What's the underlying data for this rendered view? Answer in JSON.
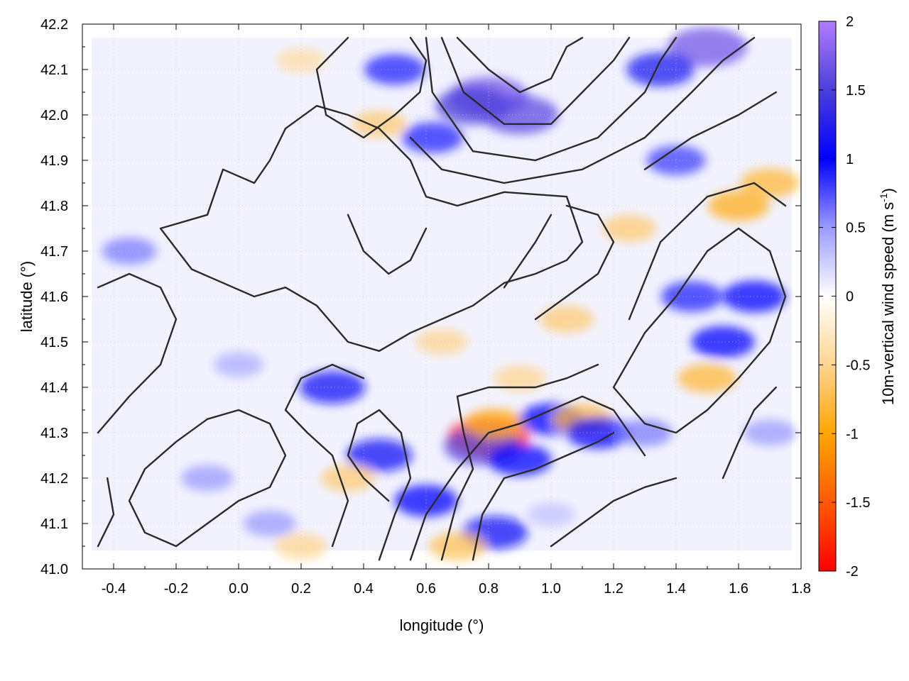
{
  "chart_data": {
    "type": "heatmap",
    "title": "",
    "xlabel": "longitude (°)",
    "ylabel": "latitude (°)",
    "xlim": [
      -0.5,
      1.8
    ],
    "ylim": [
      41.0,
      42.2
    ],
    "x_ticks": [
      "-0.4",
      "-0.2",
      "0.0",
      "0.2",
      "0.4",
      "0.6",
      "0.8",
      "1.0",
      "1.2",
      "1.4",
      "1.6",
      "1.8"
    ],
    "x_tick_values": [
      -0.4,
      -0.2,
      0.0,
      0.2,
      0.4,
      0.6,
      0.8,
      1.0,
      1.2,
      1.4,
      1.6,
      1.8
    ],
    "y_ticks": [
      "41.0",
      "41.1",
      "41.2",
      "41.3",
      "41.4",
      "41.5",
      "41.6",
      "41.7",
      "41.8",
      "41.9",
      "42.0",
      "42.1",
      "42.2"
    ],
    "y_tick_values": [
      41.0,
      41.1,
      41.2,
      41.3,
      41.4,
      41.5,
      41.6,
      41.7,
      41.8,
      41.9,
      42.0,
      42.1,
      42.2
    ],
    "grid": true,
    "colorbar": {
      "label": "10m-vertical wind speed (m s",
      "label_sup": "-1",
      "label_close": ")",
      "range": [
        -2,
        2
      ],
      "ticks": [
        "2",
        "1.5",
        "1",
        "0.5",
        "0",
        "-0.5",
        "-1",
        "-1.5",
        "-2"
      ],
      "tick_values": [
        2,
        1.5,
        1,
        0.5,
        0,
        -0.5,
        -1,
        -1.5,
        -2
      ],
      "colors": [
        {
          "v": -2.0,
          "c": "#ff0000"
        },
        {
          "v": -1.5,
          "c": "#ff5a00"
        },
        {
          "v": -1.0,
          "c": "#ffa500"
        },
        {
          "v": -0.5,
          "c": "#ffd590"
        },
        {
          "v": 0.0,
          "c": "#ffffff"
        },
        {
          "v": 0.5,
          "c": "#9a9aff"
        },
        {
          "v": 1.0,
          "c": "#0000ff"
        },
        {
          "v": 1.5,
          "c": "#4a3fd9"
        },
        {
          "v": 2.0,
          "c": "#b07cff"
        }
      ]
    },
    "data_extent": {
      "lon": [
        -0.47,
        1.77
      ],
      "lat": [
        41.04,
        42.17
      ]
    },
    "features": [
      {
        "lon": 0.8,
        "lat": 42.04,
        "value": 1.7
      },
      {
        "lon": 0.75,
        "lat": 42.02,
        "value": 1.5
      },
      {
        "lon": 0.9,
        "lat": 42.0,
        "value": 1.6
      },
      {
        "lon": 1.5,
        "lat": 42.15,
        "value": 1.7
      },
      {
        "lon": 1.35,
        "lat": 42.1,
        "value": 1.2
      },
      {
        "lon": 0.8,
        "lat": 41.29,
        "value": -1.8
      },
      {
        "lon": 0.78,
        "lat": 41.27,
        "value": 1.6
      },
      {
        "lon": 0.82,
        "lat": 41.32,
        "value": -0.9
      },
      {
        "lon": 0.9,
        "lat": 41.24,
        "value": 1.0
      },
      {
        "lon": 1.0,
        "lat": 41.33,
        "value": 1.0
      },
      {
        "lon": 1.1,
        "lat": 41.33,
        "value": -0.8
      },
      {
        "lon": 1.15,
        "lat": 41.3,
        "value": 1.0
      },
      {
        "lon": 0.45,
        "lat": 41.25,
        "value": 1.1
      },
      {
        "lon": 0.35,
        "lat": 41.2,
        "value": -0.6
      },
      {
        "lon": 0.3,
        "lat": 41.4,
        "value": 1.1
      },
      {
        "lon": 0.6,
        "lat": 41.15,
        "value": 1.0
      },
      {
        "lon": 0.82,
        "lat": 41.08,
        "value": 1.1
      },
      {
        "lon": 0.7,
        "lat": 41.05,
        "value": -0.7
      },
      {
        "lon": 1.55,
        "lat": 41.5,
        "value": 1.0
      },
      {
        "lon": 1.5,
        "lat": 41.42,
        "value": -0.8
      },
      {
        "lon": 1.45,
        "lat": 41.6,
        "value": 0.9
      },
      {
        "lon": 1.6,
        "lat": 41.8,
        "value": -0.9
      },
      {
        "lon": 1.7,
        "lat": 41.85,
        "value": -0.8
      },
      {
        "lon": 1.4,
        "lat": 41.9,
        "value": 0.8
      },
      {
        "lon": 1.65,
        "lat": 41.6,
        "value": 1.0
      },
      {
        "lon": 1.25,
        "lat": 41.75,
        "value": -0.6
      },
      {
        "lon": 1.05,
        "lat": 41.55,
        "value": -0.6
      },
      {
        "lon": 0.2,
        "lat": 42.12,
        "value": -0.4
      },
      {
        "lon": 0.45,
        "lat": 41.98,
        "value": -0.6
      },
      {
        "lon": 0.5,
        "lat": 42.1,
        "value": 0.9
      },
      {
        "lon": 0.62,
        "lat": 41.95,
        "value": 0.9
      },
      {
        "lon": -0.35,
        "lat": 41.7,
        "value": 0.6
      },
      {
        "lon": 0.0,
        "lat": 41.45,
        "value": 0.4
      },
      {
        "lon": -0.1,
        "lat": 41.2,
        "value": 0.5
      },
      {
        "lon": 0.1,
        "lat": 41.1,
        "value": 0.5
      },
      {
        "lon": 0.2,
        "lat": 41.05,
        "value": -0.5
      },
      {
        "lon": 0.65,
        "lat": 41.5,
        "value": -0.5
      },
      {
        "lon": 0.9,
        "lat": 41.42,
        "value": -0.5
      },
      {
        "lon": 1.3,
        "lat": 41.3,
        "value": 0.6
      },
      {
        "lon": 1.7,
        "lat": 41.3,
        "value": 0.5
      },
      {
        "lon": 1.0,
        "lat": 41.12,
        "value": 0.3
      }
    ],
    "contours": [
      [
        [
          -0.25,
          41.75
        ],
        [
          -0.1,
          41.78
        ],
        [
          -0.05,
          41.88
        ],
        [
          0.05,
          41.85
        ],
        [
          0.1,
          41.9
        ],
        [
          0.15,
          41.97
        ],
        [
          0.25,
          42.02
        ],
        [
          0.35,
          42.0
        ],
        [
          0.45,
          41.97
        ],
        [
          0.55,
          41.9
        ],
        [
          0.6,
          41.82
        ],
        [
          0.7,
          41.8
        ],
        [
          0.85,
          41.83
        ],
        [
          1.05,
          41.82
        ],
        [
          1.1,
          41.72
        ],
        [
          1.05,
          41.68
        ],
        [
          0.95,
          41.65
        ],
        [
          0.85,
          41.63
        ],
        [
          0.75,
          41.58
        ],
        [
          0.65,
          41.55
        ],
        [
          0.55,
          41.52
        ],
        [
          0.45,
          41.48
        ],
        [
          0.35,
          41.5
        ],
        [
          0.25,
          41.58
        ],
        [
          0.15,
          41.62
        ],
        [
          0.05,
          41.6
        ],
        [
          -0.05,
          41.63
        ],
        [
          -0.15,
          41.66
        ],
        [
          -0.25,
          41.75
        ]
      ],
      [
        [
          0.35,
          42.17
        ],
        [
          0.25,
          42.1
        ],
        [
          0.28,
          42.0
        ],
        [
          0.4,
          41.95
        ],
        [
          0.5,
          42.0
        ],
        [
          0.58,
          42.05
        ],
        [
          0.6,
          42.12
        ],
        [
          0.55,
          42.17
        ]
      ],
      [
        [
          0.7,
          42.17
        ],
        [
          0.8,
          42.1
        ],
        [
          0.9,
          42.05
        ],
        [
          1.0,
          42.08
        ],
        [
          1.05,
          42.15
        ],
        [
          1.1,
          42.17
        ]
      ],
      [
        [
          0.65,
          42.17
        ],
        [
          0.72,
          42.05
        ],
        [
          0.85,
          41.98
        ],
        [
          1.0,
          41.98
        ],
        [
          1.1,
          42.05
        ],
        [
          1.2,
          42.12
        ],
        [
          1.25,
          42.17
        ]
      ],
      [
        [
          0.6,
          42.17
        ],
        [
          0.62,
          42.05
        ],
        [
          0.75,
          41.92
        ],
        [
          0.95,
          41.9
        ],
        [
          1.15,
          41.95
        ],
        [
          1.3,
          42.05
        ],
        [
          1.35,
          42.12
        ],
        [
          1.4,
          42.17
        ]
      ],
      [
        [
          0.55,
          41.95
        ],
        [
          0.65,
          41.88
        ],
        [
          0.85,
          41.85
        ],
        [
          1.1,
          41.88
        ],
        [
          1.3,
          41.95
        ],
        [
          1.45,
          42.05
        ],
        [
          1.55,
          42.12
        ],
        [
          1.65,
          42.17
        ]
      ],
      [
        [
          1.2,
          41.4
        ],
        [
          1.3,
          41.52
        ],
        [
          1.4,
          41.6
        ],
        [
          1.5,
          41.7
        ],
        [
          1.6,
          41.75
        ],
        [
          1.7,
          41.7
        ],
        [
          1.75,
          41.6
        ],
        [
          1.7,
          41.5
        ],
        [
          1.6,
          41.42
        ],
        [
          1.5,
          41.35
        ],
        [
          1.4,
          41.3
        ],
        [
          1.3,
          41.32
        ],
        [
          1.2,
          41.4
        ]
      ],
      [
        [
          1.25,
          41.55
        ],
        [
          1.35,
          41.72
        ],
        [
          1.5,
          41.82
        ],
        [
          1.65,
          41.85
        ],
        [
          1.75,
          41.8
        ]
      ],
      [
        [
          1.3,
          41.88
        ],
        [
          1.45,
          41.95
        ],
        [
          1.6,
          42.0
        ],
        [
          1.72,
          42.05
        ]
      ],
      [
        [
          0.55,
          41.02
        ],
        [
          0.6,
          41.12
        ],
        [
          0.7,
          41.22
        ],
        [
          0.8,
          41.3
        ],
        [
          0.9,
          41.32
        ],
        [
          1.0,
          41.35
        ],
        [
          1.1,
          41.38
        ],
        [
          1.2,
          41.35
        ],
        [
          1.25,
          41.3
        ],
        [
          1.3,
          41.25
        ]
      ],
      [
        [
          0.75,
          41.02
        ],
        [
          0.78,
          41.12
        ],
        [
          0.85,
          41.2
        ],
        [
          0.95,
          41.22
        ],
        [
          1.05,
          41.25
        ],
        [
          1.15,
          41.28
        ],
        [
          1.2,
          41.3
        ]
      ],
      [
        [
          0.65,
          41.02
        ],
        [
          0.7,
          41.15
        ],
        [
          0.75,
          41.22
        ],
        [
          0.72,
          41.3
        ],
        [
          0.7,
          41.38
        ],
        [
          0.8,
          41.4
        ],
        [
          0.95,
          41.4
        ],
        [
          1.05,
          41.42
        ],
        [
          1.15,
          41.45
        ]
      ],
      [
        [
          0.45,
          41.02
        ],
        [
          0.5,
          41.12
        ],
        [
          0.55,
          41.2
        ],
        [
          0.52,
          41.3
        ],
        [
          0.45,
          41.35
        ],
        [
          0.38,
          41.32
        ],
        [
          0.35,
          41.25
        ],
        [
          0.4,
          41.2
        ],
        [
          0.48,
          41.15
        ]
      ],
      [
        [
          0.3,
          41.05
        ],
        [
          0.35,
          41.15
        ],
        [
          0.3,
          41.25
        ],
        [
          0.22,
          41.3
        ],
        [
          0.15,
          41.35
        ],
        [
          0.2,
          41.42
        ],
        [
          0.3,
          41.45
        ],
        [
          0.4,
          41.42
        ]
      ],
      [
        [
          -0.2,
          41.05
        ],
        [
          -0.1,
          41.1
        ],
        [
          0.0,
          41.15
        ],
        [
          0.1,
          41.18
        ],
        [
          0.15,
          41.25
        ],
        [
          0.1,
          41.32
        ],
        [
          0.0,
          41.35
        ],
        [
          -0.1,
          41.33
        ],
        [
          -0.2,
          41.28
        ],
        [
          -0.3,
          41.22
        ],
        [
          -0.35,
          41.15
        ],
        [
          -0.3,
          41.08
        ],
        [
          -0.2,
          41.05
        ]
      ],
      [
        [
          -0.45,
          41.3
        ],
        [
          -0.35,
          41.38
        ],
        [
          -0.25,
          41.45
        ],
        [
          -0.2,
          41.55
        ],
        [
          -0.25,
          41.62
        ],
        [
          -0.35,
          41.65
        ],
        [
          -0.45,
          41.62
        ]
      ],
      [
        [
          -0.45,
          41.05
        ],
        [
          -0.4,
          41.12
        ],
        [
          -0.42,
          41.2
        ]
      ],
      [
        [
          0.95,
          41.55
        ],
        [
          1.05,
          41.6
        ],
        [
          1.15,
          41.65
        ],
        [
          1.2,
          41.72
        ],
        [
          1.15,
          41.78
        ],
        [
          1.05,
          41.8
        ]
      ],
      [
        [
          1.55,
          41.2
        ],
        [
          1.6,
          41.28
        ],
        [
          1.65,
          41.35
        ],
        [
          1.72,
          41.4
        ]
      ],
      [
        [
          0.85,
          41.62
        ],
        [
          0.95,
          41.72
        ],
        [
          1.0,
          41.78
        ]
      ],
      [
        [
          1.0,
          41.05
        ],
        [
          1.1,
          41.1
        ],
        [
          1.2,
          41.15
        ],
        [
          1.3,
          41.18
        ],
        [
          1.4,
          41.2
        ]
      ],
      [
        [
          0.35,
          41.78
        ],
        [
          0.4,
          41.7
        ],
        [
          0.48,
          41.65
        ],
        [
          0.55,
          41.68
        ],
        [
          0.6,
          41.75
        ]
      ]
    ]
  }
}
